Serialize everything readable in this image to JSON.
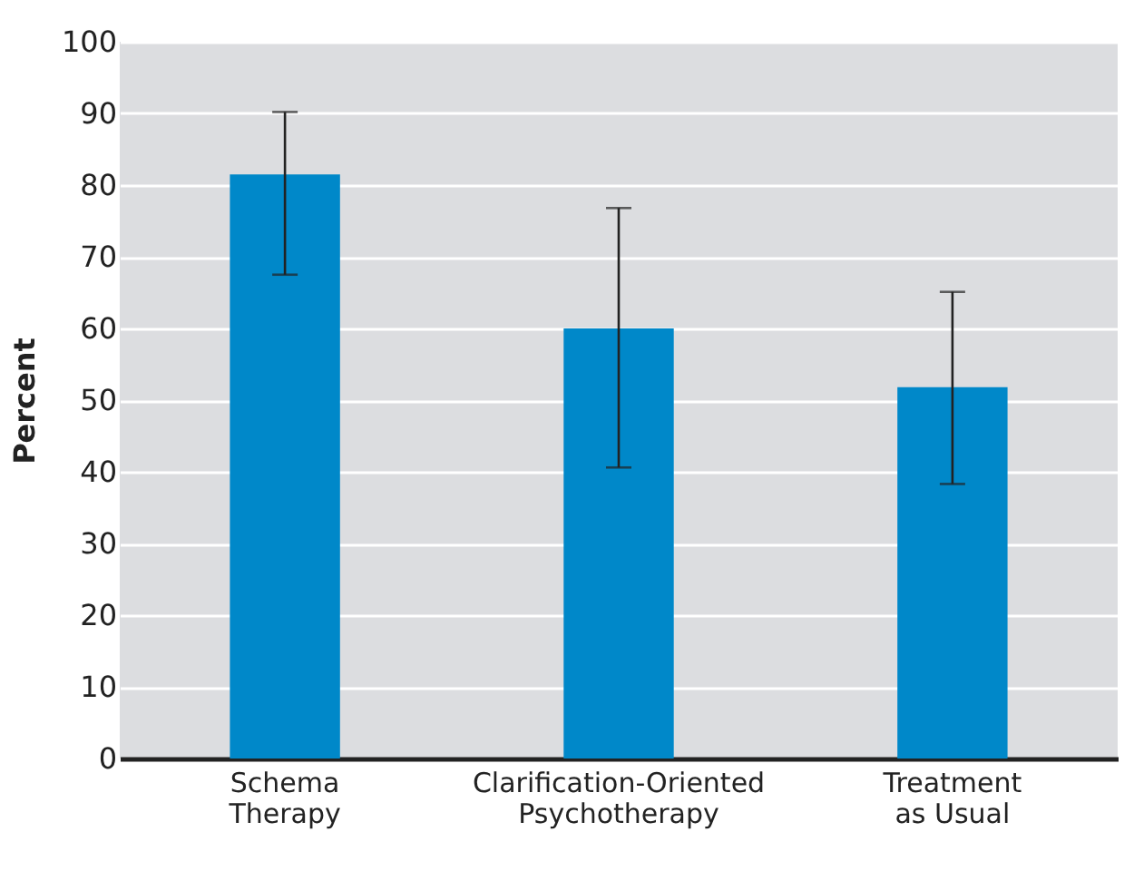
{
  "chart_data": {
    "type": "bar",
    "ylabel": "Percent",
    "categories": [
      "Schema Therapy",
      "Clarification-Oriented Psychotherapy",
      "Treatment as Usual"
    ],
    "values": [
      81.5,
      60.0,
      51.8
    ],
    "errors": [
      [
        67.5,
        90.2
      ],
      [
        40.6,
        76.8
      ],
      [
        38.3,
        65.1
      ]
    ],
    "color": "#0088c9",
    "ylim": [
      0,
      100
    ],
    "yticks": [
      0,
      10,
      20,
      30,
      40,
      50,
      60,
      70,
      80,
      90,
      100
    ],
    "grid": "y"
  }
}
